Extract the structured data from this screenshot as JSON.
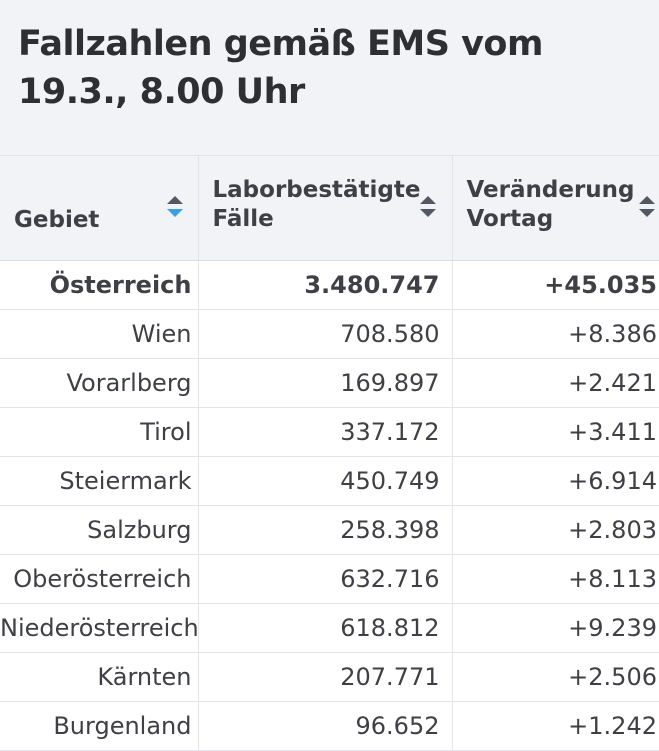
{
  "title": "Fallzahlen gemäß EMS vom 19.3., 8.00 Uhr",
  "columns": [
    {
      "label": "Gebiet",
      "sort": "descending-active"
    },
    {
      "label": "Laborbestätigte Fälle",
      "sort": "none"
    },
    {
      "label": "Veränderung Vortag",
      "sort": "none"
    }
  ],
  "colors": {
    "header_background": "#f2f3f6",
    "sort_active": "#3b9fe0",
    "sort_inactive": "#555861",
    "text": "#3f4045"
  },
  "rows": [
    {
      "region": "Österreich",
      "cases": "3.480.747",
      "change": "+45.035"
    },
    {
      "region": "Wien",
      "cases": "708.580",
      "change": "+8.386"
    },
    {
      "region": "Vorarlberg",
      "cases": "169.897",
      "change": "+2.421"
    },
    {
      "region": "Tirol",
      "cases": "337.172",
      "change": "+3.411"
    },
    {
      "region": "Steiermark",
      "cases": "450.749",
      "change": "+6.914"
    },
    {
      "region": "Salzburg",
      "cases": "258.398",
      "change": "+2.803"
    },
    {
      "region": "Oberösterreich",
      "cases": "632.716",
      "change": "+8.113"
    },
    {
      "region": "Niederösterreich",
      "cases": "618.812",
      "change": "+9.239"
    },
    {
      "region": "Kärnten",
      "cases": "207.771",
      "change": "+2.506"
    },
    {
      "region": "Burgenland",
      "cases": "96.652",
      "change": "+1.242"
    }
  ]
}
